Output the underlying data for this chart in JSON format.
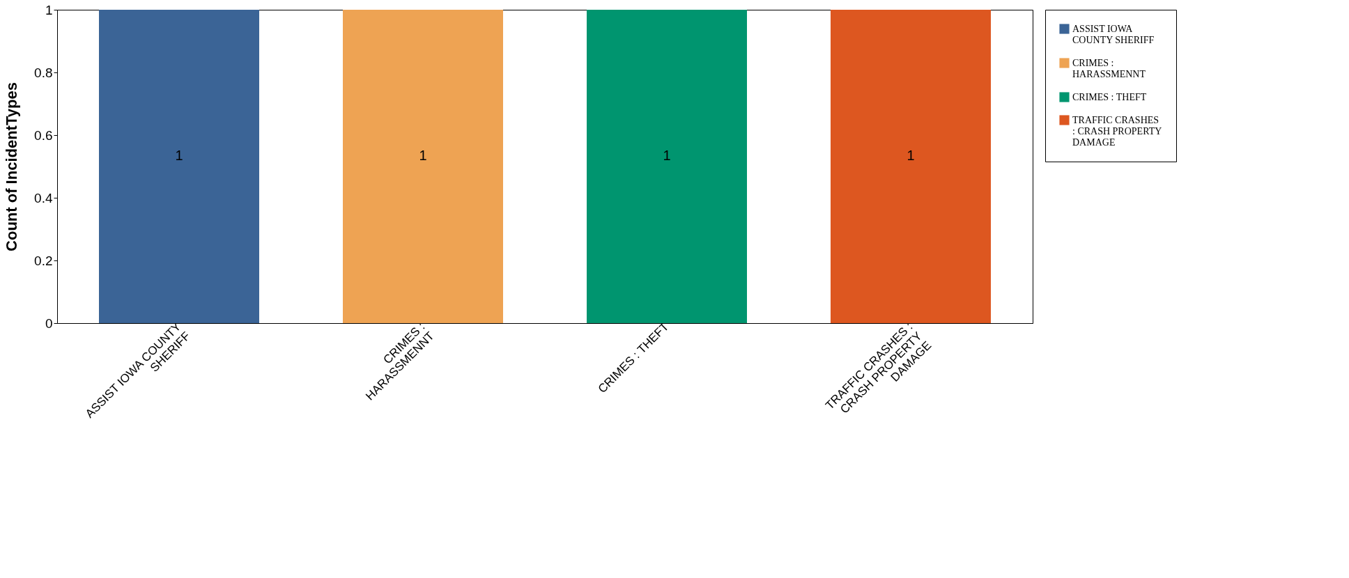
{
  "chart_data": {
    "type": "bar",
    "ylabel": "Count of IncidentTypes",
    "categories": [
      "ASSIST IOWA COUNTY SHERIFF",
      "CRIMES : HARASSMENNT",
      "CRIMES : THEFT",
      "TRAFFIC CRASHES : CRASH PROPERTY DAMAGE"
    ],
    "series": [
      {
        "name": "ASSIST IOWA COUNTY SHERIFF",
        "color": "#3b6496",
        "values": [
          1,
          null,
          null,
          null
        ]
      },
      {
        "name": "CRIMES : HARASSMENNT",
        "color": "#eea353",
        "values": [
          null,
          1,
          null,
          null
        ]
      },
      {
        "name": "CRIMES : THEFT",
        "color": "#00956f",
        "values": [
          null,
          null,
          1,
          null
        ]
      },
      {
        "name": "TRAFFIC CRASHES : CRASH PROPERTY DAMAGE",
        "color": "#dd5720",
        "values": [
          null,
          null,
          null,
          1
        ]
      }
    ],
    "ylim": [
      0,
      1
    ],
    "yticks": [
      0,
      0.2,
      0.4,
      0.6,
      0.8,
      1
    ],
    "data_labels": true,
    "grid": false,
    "legend": "right"
  }
}
